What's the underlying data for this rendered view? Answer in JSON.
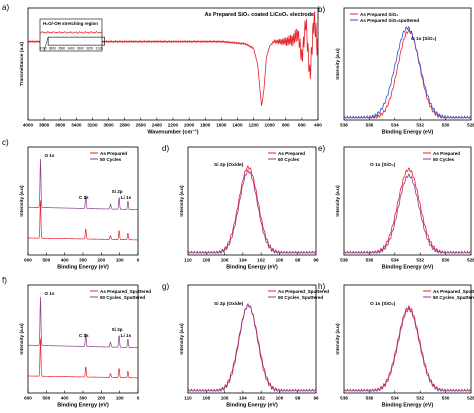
{
  "colors": {
    "red": "#e8202a",
    "purple": "#8a3c8c",
    "blue": "#2e4fd8",
    "axis": "#000000"
  },
  "chart_data": [
    {
      "type": "line",
      "id": "a",
      "panel_label": "a)",
      "title": "As Prepared SiO₂ coated LiCoO₂ electrode",
      "xlabel": "Wavenumber (cm⁻¹)",
      "ylabel": "Transmittance (a.u)",
      "xlim": [
        4000,
        400
      ],
      "x_reversed": true,
      "grid": false,
      "xticks": [
        "4000",
        "3800",
        "3600",
        "3400",
        "3200",
        "3000",
        "2800",
        "2600",
        "2400",
        "2200",
        "2000",
        "1800",
        "1600",
        "1400",
        "1200",
        "1000",
        "800",
        "600",
        "400"
      ],
      "series": [
        {
          "x": [
            4000,
            3700,
            3400,
            3100,
            2800,
            2500,
            2200,
            1900,
            1700,
            1600,
            1450,
            1300,
            1200,
            1150,
            1100,
            1070,
            1040,
            1000,
            950,
            900,
            800,
            700,
            650,
            600,
            550,
            500,
            450,
            400
          ],
          "y": [
            0.7,
            0.7,
            0.7,
            0.7,
            0.7,
            0.7,
            0.7,
            0.7,
            0.7,
            0.7,
            0.69,
            0.68,
            0.64,
            0.5,
            0.12,
            0.28,
            0.56,
            0.66,
            0.7,
            0.7,
            0.7,
            0.72,
            0.78,
            0.55,
            0.88,
            0.38,
            0.92,
            0.6
          ]
        }
      ],
      "inset": {
        "title": "H₂O/-OH stretching region",
        "xticks": [
          "3700",
          "3600",
          "3500",
          "3400",
          "3300",
          "3200",
          "3100"
        ],
        "x": [
          3700,
          3100
        ]
      }
    },
    {
      "type": "line",
      "id": "b",
      "panel_label": "b)",
      "xlabel": "Binding Energy (eV)",
      "ylabel": "Intensity (a.u)",
      "xlim": [
        538,
        528
      ],
      "x_reversed": true,
      "xticks": [
        "538",
        "536",
        "534",
        "532",
        "530",
        "528"
      ],
      "annotation": "O 1s (SiO₂)",
      "legend_position": "top-left",
      "series": [
        {
          "name": "As Prepared SiO₂",
          "color": "red",
          "center": 532.9,
          "width": 0.85,
          "amp": 0.82
        },
        {
          "name": "As Prepared SiO₂sputtered",
          "color": "blue",
          "center": 533.0,
          "width": 0.95,
          "amp": 0.85
        }
      ]
    },
    {
      "type": "line",
      "id": "c",
      "panel_label": "c)",
      "xlabel": "Binding Energy (eV)",
      "ylabel": "Intensity (a.u)",
      "xlim": [
        600,
        0
      ],
      "x_reversed": true,
      "xticks": [
        "600",
        "500",
        "400",
        "300",
        "200",
        "100",
        "0"
      ],
      "legend_position": "top-right",
      "series": [
        {
          "name": "As Prepared",
          "color": "red"
        },
        {
          "name": "50 Cycles",
          "color": "purple"
        }
      ],
      "peak_labels": [
        {
          "text": "O 1s",
          "x": 532
        },
        {
          "text": "C 1s",
          "x": 285
        },
        {
          "text": "Si 2p",
          "x": 103
        },
        {
          "text": "Li 1s",
          "x": 55
        }
      ]
    },
    {
      "type": "line",
      "id": "d",
      "panel_label": "d)",
      "xlabel": "Binding Energy (eV)",
      "ylabel": "Intensity (a.u)",
      "xlim": [
        110,
        96
      ],
      "x_reversed": true,
      "xticks": [
        "110",
        "108",
        "106",
        "104",
        "102",
        "100",
        "98",
        "96"
      ],
      "annotation": "Si 2p (Oxide)",
      "legend_position": "top-right",
      "series": [
        {
          "name": "As Prepared",
          "color": "red",
          "center": 103.4,
          "width": 1.05,
          "amp": 0.84
        },
        {
          "name": "50 Cycles",
          "color": "purple",
          "center": 103.4,
          "width": 1.0,
          "amp": 0.8
        }
      ]
    },
    {
      "type": "line",
      "id": "e",
      "panel_label": "e)",
      "xlabel": "Binding Energy (eV)",
      "ylabel": "Intensity (a.u)",
      "xlim": [
        538,
        528
      ],
      "x_reversed": true,
      "xticks": [
        "538",
        "536",
        "534",
        "532",
        "530",
        "528"
      ],
      "annotation": "O 1s (SiO₂)",
      "legend_position": "top-right",
      "series": [
        {
          "name": "As Prepared",
          "color": "red",
          "center": 532.9,
          "width": 0.85,
          "amp": 0.82
        },
        {
          "name": "50 Cycles",
          "color": "purple",
          "center": 532.9,
          "width": 0.8,
          "amp": 0.76
        }
      ]
    },
    {
      "type": "line",
      "id": "f",
      "panel_label": "f)",
      "xlabel": "Binding Energy (eV)",
      "ylabel": "Intensity (a.u)",
      "xlim": [
        600,
        0
      ],
      "x_reversed": true,
      "xticks": [
        "600",
        "500",
        "400",
        "300",
        "200",
        "100",
        "0"
      ],
      "legend_position": "top-right",
      "series": [
        {
          "name": "As Prepared_Sputtered",
          "color": "red"
        },
        {
          "name": "50 Cycles_Sputtered",
          "color": "purple"
        }
      ],
      "peak_labels": [
        {
          "text": "O 1s",
          "x": 532
        },
        {
          "text": "C 1s",
          "x": 285
        },
        {
          "text": "Si 2p",
          "x": 103
        },
        {
          "text": "Li 1s",
          "x": 55
        }
      ]
    },
    {
      "type": "line",
      "id": "g",
      "panel_label": "g)",
      "xlabel": "Binding Energy (eV)",
      "ylabel": "Intensity (a.u)",
      "xlim": [
        110,
        96
      ],
      "x_reversed": true,
      "xticks": [
        "110",
        "108",
        "106",
        "104",
        "102",
        "100",
        "98",
        "96"
      ],
      "annotation": "Si 2p (Oxide)",
      "legend_position": "top-right",
      "series": [
        {
          "name": "As Prepared_Sputtered",
          "color": "red",
          "center": 103.4,
          "width": 1.05,
          "amp": 0.84
        },
        {
          "name": "50 Cycles_Sputtered",
          "color": "purple",
          "center": 103.4,
          "width": 1.0,
          "amp": 0.84
        }
      ]
    },
    {
      "type": "line",
      "id": "h",
      "panel_label": "h)",
      "xlabel": "Binding Energy (eV)",
      "ylabel": "Intensity (a.u)",
      "xlim": [
        538,
        528
      ],
      "x_reversed": true,
      "xticks": [
        "538",
        "536",
        "534",
        "532",
        "530",
        "528"
      ],
      "annotation": "O 1s (SiO₂)",
      "legend_position": "top-right",
      "series": [
        {
          "name": "As Prepared_Sputtered",
          "color": "red",
          "center": 532.9,
          "width": 0.85,
          "amp": 0.82
        },
        {
          "name": "50 Cycles_Sputtered",
          "color": "purple",
          "center": 532.9,
          "width": 0.82,
          "amp": 0.8
        }
      ]
    }
  ]
}
